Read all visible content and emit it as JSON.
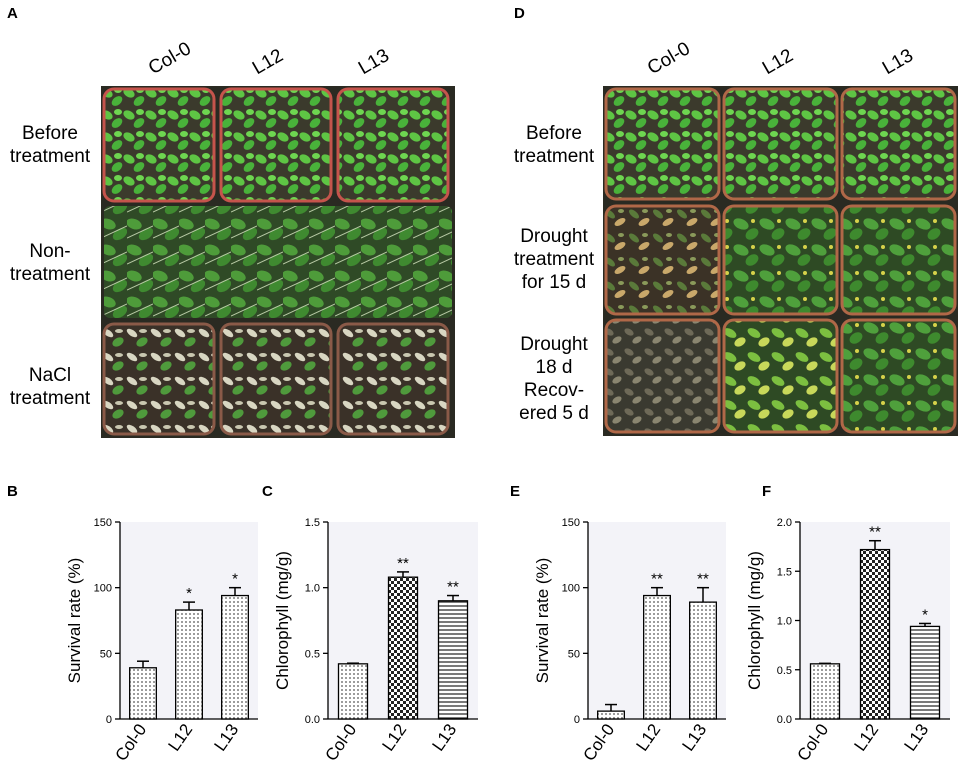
{
  "panels": {
    "A": {
      "letter": "A",
      "columns": [
        "Col-0",
        "L12",
        "L13"
      ],
      "rows": [
        {
          "label": "Before\ntreatment",
          "state": "healthy"
        },
        {
          "label": "Non-\ntreatment",
          "state": "overgrown"
        },
        {
          "label": "NaCl\ntreatment",
          "state": "salt"
        }
      ]
    },
    "D": {
      "letter": "D",
      "columns": [
        "Col-0",
        "L12",
        "L13"
      ],
      "rows": [
        {
          "label": "Before\ntreatment",
          "state": "healthy"
        },
        {
          "label": "Drought\ntreatment\nfor 15 d",
          "state": "drought"
        },
        {
          "label": "Drought\n18 d\nRecov-\nered 5 d",
          "state": "recovered"
        }
      ]
    }
  },
  "colors": {
    "pot_rim": "#c5544c",
    "plant_green": "#4caf3c",
    "soil": "#3a3128",
    "chart_bg": "#f3f3f8"
  },
  "chart_data": [
    {
      "panel": "B",
      "type": "bar",
      "categories": [
        "Col-0",
        "L12",
        "L13"
      ],
      "values": [
        39,
        83,
        94
      ],
      "errors": [
        5,
        6,
        6
      ],
      "significance": [
        "",
        "*",
        "*"
      ],
      "patterns": [
        "dots",
        "dots",
        "dots"
      ],
      "ylabel": "Survival rate (%)",
      "ylim": [
        0,
        150
      ],
      "yticks": [
        "0",
        "50",
        "100",
        "150"
      ]
    },
    {
      "panel": "C",
      "type": "bar",
      "categories": [
        "Col-0",
        "L12",
        "L13"
      ],
      "values": [
        0.42,
        1.08,
        0.9
      ],
      "errors": [
        0.005,
        0.04,
        0.04
      ],
      "significance": [
        "",
        "**",
        "**"
      ],
      "patterns": [
        "dots",
        "checker",
        "hlines"
      ],
      "ylabel": "Chlorophyll (mg/g)",
      "ylim": [
        0,
        1.5
      ],
      "yticks": [
        "0.0",
        "0.5",
        "1.0",
        "1.5"
      ]
    },
    {
      "panel": "E",
      "type": "bar",
      "categories": [
        "Col-0",
        "L12",
        "L13"
      ],
      "values": [
        6,
        94,
        89
      ],
      "errors": [
        5,
        6,
        11
      ],
      "significance": [
        "",
        "**",
        "**"
      ],
      "patterns": [
        "dots",
        "dots",
        "dots"
      ],
      "ylabel": "Survival rate (%)",
      "ylim": [
        0,
        150
      ],
      "yticks": [
        "0",
        "50",
        "100",
        "150"
      ]
    },
    {
      "panel": "F",
      "type": "bar",
      "categories": [
        "Col-0",
        "L12",
        "L13"
      ],
      "values": [
        0.56,
        1.72,
        0.94
      ],
      "errors": [
        0.005,
        0.09,
        0.03
      ],
      "significance": [
        "",
        "**",
        "*"
      ],
      "patterns": [
        "dots",
        "checker",
        "hlines"
      ],
      "ylabel": "Chlorophyll (mg/g)",
      "ylim": [
        0,
        2.0
      ],
      "yticks": [
        "0.0",
        "0.5",
        "1.0",
        "1.5",
        "2.0"
      ]
    }
  ]
}
